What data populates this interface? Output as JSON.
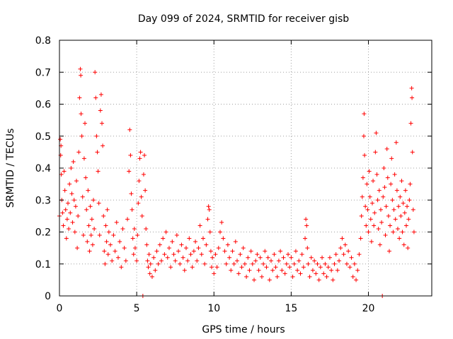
{
  "chart_data": {
    "type": "scatter",
    "title": "Day 099 of 2024, SRMTID for receiver gisb",
    "xlabel": "GPS time / hours",
    "ylabel": "SRMTID / TECUs",
    "xlim": [
      0,
      24.1
    ],
    "ylim": [
      0,
      0.8
    ],
    "xticks": [
      0,
      5,
      10,
      15,
      20
    ],
    "xtick_labels": [
      "0",
      "5",
      "10",
      "15",
      "20"
    ],
    "yticks": [
      0,
      0.1,
      0.2,
      0.3,
      0.4,
      0.5,
      0.6,
      0.7,
      0.8
    ],
    "ytick_labels": [
      "0",
      "0.1",
      "0.2",
      "0.3",
      "0.4",
      "0.5",
      "0.6",
      "0.7",
      "0.8"
    ],
    "grid": true,
    "marker": "plus",
    "marker_color": "#ff0000",
    "series": [
      {
        "name": "SRMTID",
        "points": [
          [
            0.0,
            0.25
          ],
          [
            0.05,
            0.49
          ],
          [
            0.08,
            0.44
          ],
          [
            0.1,
            0.47
          ],
          [
            0.12,
            0.38
          ],
          [
            0.15,
            0.3
          ],
          [
            0.2,
            0.26
          ],
          [
            0.25,
            0.22
          ],
          [
            0.3,
            0.39
          ],
          [
            0.35,
            0.33
          ],
          [
            0.4,
            0.27
          ],
          [
            0.45,
            0.18
          ],
          [
            0.5,
            0.24
          ],
          [
            0.55,
            0.29
          ],
          [
            0.6,
            0.21
          ],
          [
            0.65,
            0.35
          ],
          [
            0.7,
            0.26
          ],
          [
            0.75,
            0.4
          ],
          [
            0.8,
            0.32
          ],
          [
            0.85,
            0.23
          ],
          [
            0.9,
            0.42
          ],
          [
            0.95,
            0.3
          ],
          [
            1.0,
            0.2
          ],
          [
            1.05,
            0.28
          ],
          [
            1.1,
            0.36
          ],
          [
            1.15,
            0.15
          ],
          [
            1.2,
            0.25
          ],
          [
            1.25,
            0.45
          ],
          [
            1.3,
            0.62
          ],
          [
            1.35,
            0.71
          ],
          [
            1.38,
            0.69
          ],
          [
            1.4,
            0.57
          ],
          [
            1.45,
            0.5
          ],
          [
            1.5,
            0.31
          ],
          [
            1.55,
            0.19
          ],
          [
            1.6,
            0.43
          ],
          [
            1.65,
            0.54
          ],
          [
            1.7,
            0.37
          ],
          [
            1.75,
            0.27
          ],
          [
            1.8,
            0.17
          ],
          [
            1.85,
            0.33
          ],
          [
            1.9,
            0.22
          ],
          [
            1.95,
            0.14
          ],
          [
            2.0,
            0.28
          ],
          [
            2.05,
            0.19
          ],
          [
            2.1,
            0.24
          ],
          [
            2.15,
            0.16
          ],
          [
            2.2,
            0.3
          ],
          [
            2.25,
            0.21
          ],
          [
            2.3,
            0.7
          ],
          [
            2.35,
            0.62
          ],
          [
            2.4,
            0.5
          ],
          [
            2.45,
            0.45
          ],
          [
            2.5,
            0.39
          ],
          [
            2.55,
            0.29
          ],
          [
            2.6,
            0.19
          ],
          [
            2.65,
            0.58
          ],
          [
            2.7,
            0.63
          ],
          [
            2.75,
            0.54
          ],
          [
            2.8,
            0.47
          ],
          [
            2.85,
            0.25
          ],
          [
            2.9,
            0.14
          ],
          [
            2.95,
            0.1
          ],
          [
            3.0,
            0.22
          ],
          [
            3.05,
            0.17
          ],
          [
            3.1,
            0.27
          ],
          [
            3.15,
            0.13
          ],
          [
            3.2,
            0.2
          ],
          [
            3.3,
            0.16
          ],
          [
            3.4,
            0.11
          ],
          [
            3.5,
            0.19
          ],
          [
            3.6,
            0.14
          ],
          [
            3.7,
            0.23
          ],
          [
            3.8,
            0.12
          ],
          [
            3.9,
            0.17
          ],
          [
            4.0,
            0.09
          ],
          [
            4.1,
            0.21
          ],
          [
            4.2,
            0.15
          ],
          [
            4.3,
            0.11
          ],
          [
            4.4,
            0.24
          ],
          [
            4.5,
            0.39
          ],
          [
            4.55,
            0.52
          ],
          [
            4.6,
            0.44
          ],
          [
            4.65,
            0.32
          ],
          [
            4.7,
            0.27
          ],
          [
            4.75,
            0.18
          ],
          [
            4.8,
            0.13
          ],
          [
            4.85,
            0.21
          ],
          [
            4.9,
            0.15
          ],
          [
            5.0,
            0.11
          ],
          [
            5.05,
            0.19
          ],
          [
            5.1,
            0.29
          ],
          [
            5.15,
            0.36
          ],
          [
            5.2,
            0.43
          ],
          [
            5.25,
            0.45
          ],
          [
            5.3,
            0.31
          ],
          [
            5.35,
            0.25
          ],
          [
            5.4,
            0.0
          ],
          [
            5.45,
            0.38
          ],
          [
            5.5,
            0.44
          ],
          [
            5.55,
            0.33
          ],
          [
            5.6,
            0.21
          ],
          [
            5.65,
            0.16
          ],
          [
            5.7,
            0.11
          ],
          [
            5.75,
            0.09
          ],
          [
            5.8,
            0.13
          ],
          [
            5.85,
            0.07
          ],
          [
            5.9,
            0.1
          ],
          [
            6.0,
            0.06
          ],
          [
            6.1,
            0.12
          ],
          [
            6.2,
            0.08
          ],
          [
            6.3,
            0.14
          ],
          [
            6.4,
            0.1
          ],
          [
            6.5,
            0.16
          ],
          [
            6.6,
            0.11
          ],
          [
            6.7,
            0.18
          ],
          [
            6.8,
            0.13
          ],
          [
            6.9,
            0.2
          ],
          [
            7.0,
            0.12
          ],
          [
            7.1,
            0.15
          ],
          [
            7.2,
            0.09
          ],
          [
            7.3,
            0.17
          ],
          [
            7.4,
            0.13
          ],
          [
            7.5,
            0.11
          ],
          [
            7.6,
            0.19
          ],
          [
            7.7,
            0.14
          ],
          [
            7.8,
            0.1
          ],
          [
            7.9,
            0.16
          ],
          [
            8.0,
            0.12
          ],
          [
            8.1,
            0.08
          ],
          [
            8.2,
            0.15
          ],
          [
            8.3,
            0.11
          ],
          [
            8.4,
            0.18
          ],
          [
            8.5,
            0.13
          ],
          [
            8.6,
            0.09
          ],
          [
            8.7,
            0.14
          ],
          [
            8.8,
            0.17
          ],
          [
            8.9,
            0.11
          ],
          [
            9.0,
            0.15
          ],
          [
            9.1,
            0.22
          ],
          [
            9.2,
            0.13
          ],
          [
            9.3,
            0.18
          ],
          [
            9.4,
            0.1
          ],
          [
            9.5,
            0.16
          ],
          [
            9.6,
            0.24
          ],
          [
            9.65,
            0.28
          ],
          [
            9.7,
            0.27
          ],
          [
            9.75,
            0.2
          ],
          [
            9.8,
            0.14
          ],
          [
            9.85,
            0.09
          ],
          [
            9.9,
            0.12
          ],
          [
            10.0,
            0.07
          ],
          [
            10.1,
            0.13
          ],
          [
            10.2,
            0.09
          ],
          [
            10.3,
            0.15
          ],
          [
            10.4,
            0.2
          ],
          [
            10.5,
            0.23
          ],
          [
            10.6,
            0.18
          ],
          [
            10.7,
            0.14
          ],
          [
            10.8,
            0.1
          ],
          [
            10.9,
            0.16
          ],
          [
            11.0,
            0.12
          ],
          [
            11.1,
            0.08
          ],
          [
            11.2,
            0.14
          ],
          [
            11.3,
            0.1
          ],
          [
            11.4,
            0.17
          ],
          [
            11.5,
            0.11
          ],
          [
            11.6,
            0.07
          ],
          [
            11.7,
            0.13
          ],
          [
            11.8,
            0.09
          ],
          [
            11.9,
            0.15
          ],
          [
            12.0,
            0.1
          ],
          [
            12.1,
            0.06
          ],
          [
            12.2,
            0.12
          ],
          [
            12.3,
            0.08
          ],
          [
            12.4,
            0.14
          ],
          [
            12.5,
            0.1
          ],
          [
            12.6,
            0.05
          ],
          [
            12.7,
            0.11
          ],
          [
            12.8,
            0.13
          ],
          [
            12.9,
            0.08
          ],
          [
            13.0,
            0.12
          ],
          [
            13.1,
            0.06
          ],
          [
            13.2,
            0.1
          ],
          [
            13.3,
            0.14
          ],
          [
            13.4,
            0.09
          ],
          [
            13.5,
            0.12
          ],
          [
            13.6,
            0.05
          ],
          [
            13.7,
            0.11
          ],
          [
            13.8,
            0.08
          ],
          [
            13.9,
            0.13
          ],
          [
            14.0,
            0.09
          ],
          [
            14.1,
            0.06
          ],
          [
            14.2,
            0.11
          ],
          [
            14.3,
            0.14
          ],
          [
            14.4,
            0.08
          ],
          [
            14.5,
            0.12
          ],
          [
            14.6,
            0.07
          ],
          [
            14.7,
            0.1
          ],
          [
            14.8,
            0.13
          ],
          [
            14.9,
            0.09
          ],
          [
            15.0,
            0.12
          ],
          [
            15.1,
            0.06
          ],
          [
            15.2,
            0.1
          ],
          [
            15.3,
            0.14
          ],
          [
            15.4,
            0.08
          ],
          [
            15.5,
            0.11
          ],
          [
            15.6,
            0.07
          ],
          [
            15.7,
            0.13
          ],
          [
            15.8,
            0.09
          ],
          [
            15.9,
            0.18
          ],
          [
            15.95,
            0.24
          ],
          [
            16.0,
            0.22
          ],
          [
            16.05,
            0.15
          ],
          [
            16.1,
            0.1
          ],
          [
            16.2,
            0.06
          ],
          [
            16.3,
            0.12
          ],
          [
            16.4,
            0.08
          ],
          [
            16.5,
            0.11
          ],
          [
            16.6,
            0.07
          ],
          [
            16.7,
            0.1
          ],
          [
            16.8,
            0.05
          ],
          [
            16.9,
            0.09
          ],
          [
            17.0,
            0.12
          ],
          [
            17.1,
            0.07
          ],
          [
            17.2,
            0.1
          ],
          [
            17.3,
            0.06
          ],
          [
            17.4,
            0.09
          ],
          [
            17.5,
            0.12
          ],
          [
            17.6,
            0.08
          ],
          [
            17.7,
            0.05
          ],
          [
            17.8,
            0.1
          ],
          [
            17.9,
            0.13
          ],
          [
            18.0,
            0.08
          ],
          [
            18.1,
            0.11
          ],
          [
            18.2,
            0.15
          ],
          [
            18.3,
            0.18
          ],
          [
            18.4,
            0.13
          ],
          [
            18.5,
            0.16
          ],
          [
            18.6,
            0.1
          ],
          [
            18.7,
            0.14
          ],
          [
            18.8,
            0.09
          ],
          [
            18.9,
            0.12
          ],
          [
            19.0,
            0.06
          ],
          [
            19.1,
            0.1
          ],
          [
            19.2,
            0.05
          ],
          [
            19.3,
            0.08
          ],
          [
            19.4,
            0.13
          ],
          [
            19.5,
            0.18
          ],
          [
            19.55,
            0.25
          ],
          [
            19.6,
            0.31
          ],
          [
            19.65,
            0.37
          ],
          [
            19.7,
            0.5
          ],
          [
            19.72,
            0.57
          ],
          [
            19.75,
            0.44
          ],
          [
            19.8,
            0.28
          ],
          [
            19.85,
            0.22
          ],
          [
            19.9,
            0.35
          ],
          [
            19.95,
            0.27
          ],
          [
            20.0,
            0.2
          ],
          [
            20.05,
            0.39
          ],
          [
            20.1,
            0.31
          ],
          [
            20.15,
            0.24
          ],
          [
            20.2,
            0.17
          ],
          [
            20.25,
            0.29
          ],
          [
            20.3,
            0.36
          ],
          [
            20.35,
            0.22
          ],
          [
            20.4,
            0.26
          ],
          [
            20.45,
            0.45
          ],
          [
            20.5,
            0.51
          ],
          [
            20.55,
            0.38
          ],
          [
            20.6,
            0.3
          ],
          [
            20.65,
            0.21
          ],
          [
            20.7,
            0.33
          ],
          [
            20.75,
            0.16
          ],
          [
            20.8,
            0.27
          ],
          [
            20.85,
            0.23
          ],
          [
            20.9,
            0.0
          ],
          [
            20.95,
            0.31
          ],
          [
            21.0,
            0.4
          ],
          [
            21.05,
            0.34
          ],
          [
            21.1,
            0.19
          ],
          [
            21.15,
            0.28
          ],
          [
            21.2,
            0.46
          ],
          [
            21.25,
            0.37
          ],
          [
            21.3,
            0.25
          ],
          [
            21.35,
            0.14
          ],
          [
            21.4,
            0.22
          ],
          [
            21.45,
            0.35
          ],
          [
            21.5,
            0.43
          ],
          [
            21.55,
            0.3
          ],
          [
            21.6,
            0.2
          ],
          [
            21.65,
            0.27
          ],
          [
            21.7,
            0.38
          ],
          [
            21.75,
            0.24
          ],
          [
            21.8,
            0.48
          ],
          [
            21.85,
            0.33
          ],
          [
            21.9,
            0.21
          ],
          [
            21.95,
            0.28
          ],
          [
            22.0,
            0.18
          ],
          [
            22.05,
            0.31
          ],
          [
            22.1,
            0.25
          ],
          [
            22.15,
            0.36
          ],
          [
            22.2,
            0.2
          ],
          [
            22.25,
            0.29
          ],
          [
            22.3,
            0.16
          ],
          [
            22.35,
            0.26
          ],
          [
            22.4,
            0.33
          ],
          [
            22.45,
            0.22
          ],
          [
            22.5,
            0.28
          ],
          [
            22.55,
            0.15
          ],
          [
            22.6,
            0.24
          ],
          [
            22.65,
            0.3
          ],
          [
            22.7,
            0.35
          ],
          [
            22.75,
            0.54
          ],
          [
            22.8,
            0.65
          ],
          [
            22.82,
            0.62
          ],
          [
            22.85,
            0.45
          ],
          [
            22.9,
            0.27
          ],
          [
            22.95,
            0.2
          ]
        ]
      }
    ]
  }
}
